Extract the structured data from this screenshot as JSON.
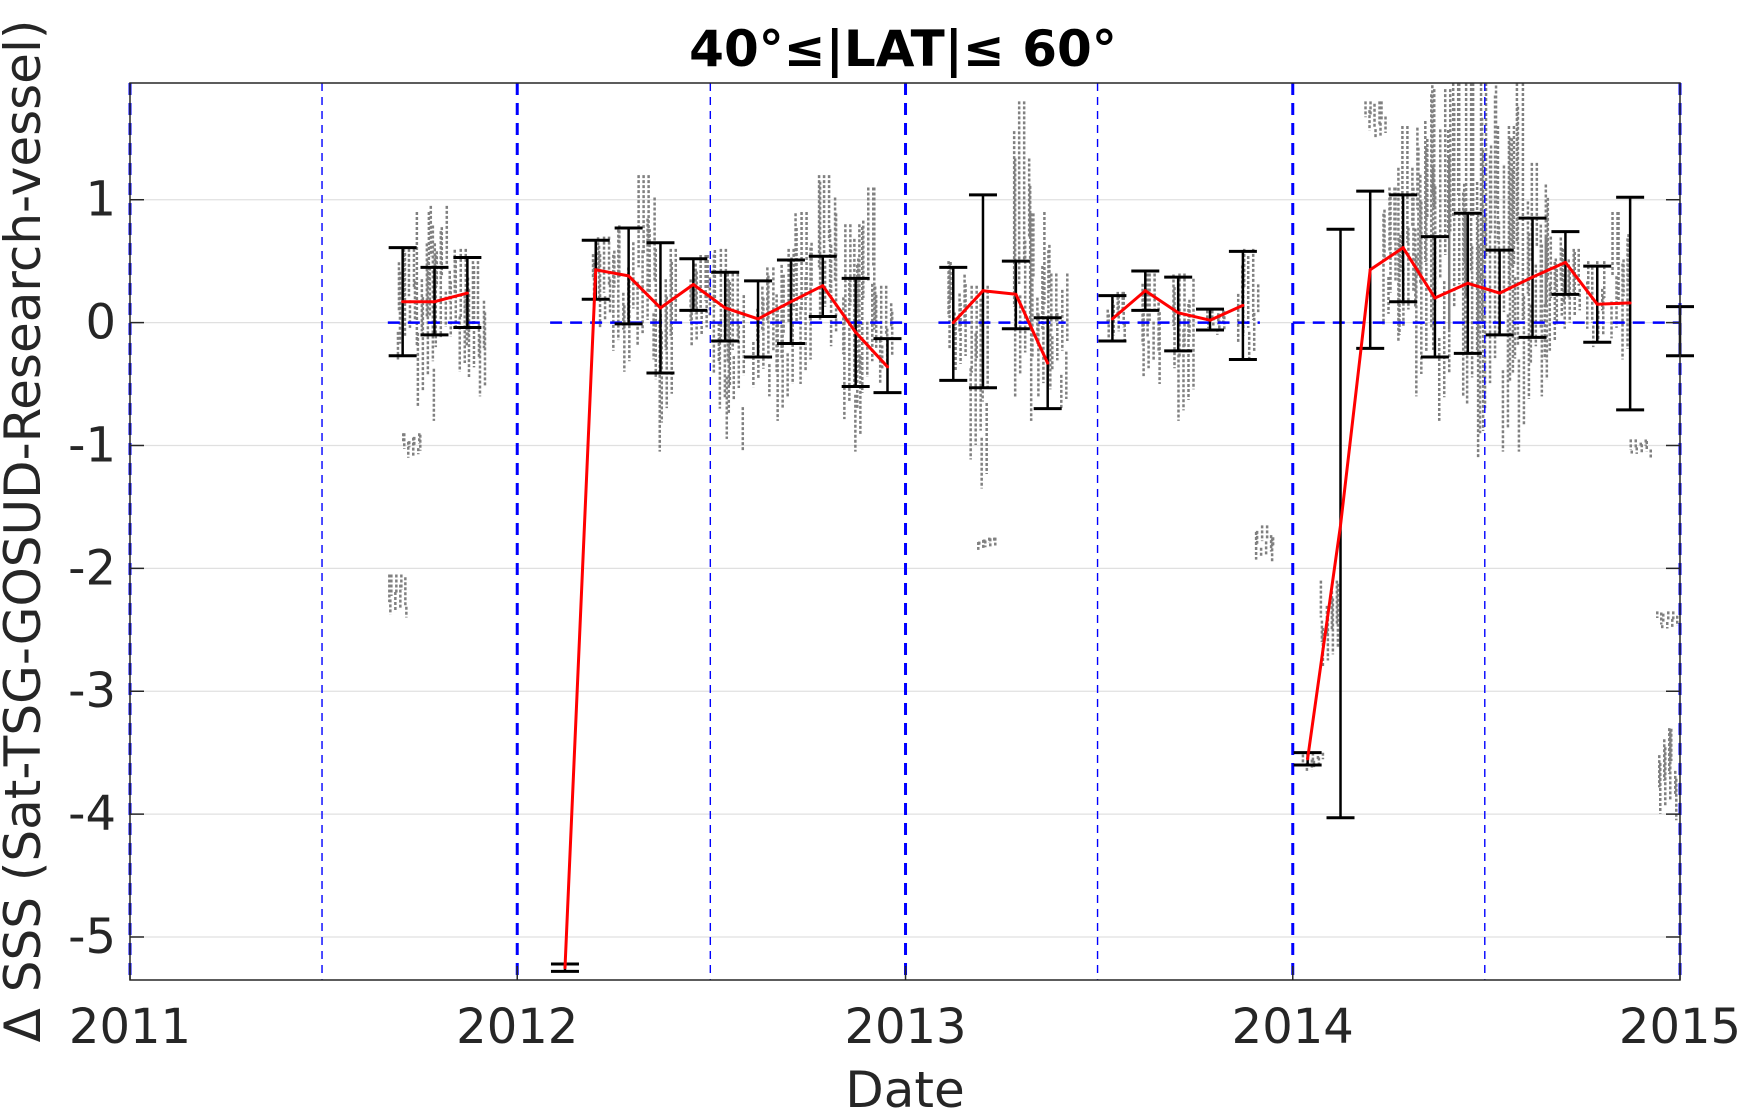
{
  "chart_data": {
    "type": "line",
    "title": "40°≤|LAT|≤ 60°",
    "xlabel": "Date",
    "ylabel": "Δ SSS (Sat-TSG-GOSUD-Research-vessel)",
    "xlim": [
      "2011-01-01",
      "2015-01-01"
    ],
    "ylim": [
      -5.35,
      1.95
    ],
    "x_ticks": [
      "2011",
      "2012",
      "2013",
      "2014",
      "2015"
    ],
    "x_tick_dates": [
      "2011-01-01",
      "2012-01-01",
      "2013-01-01",
      "2014-01-01",
      "2015-01-01"
    ],
    "y_ticks": [
      -5,
      -4,
      -3,
      -2,
      -1,
      0,
      1
    ],
    "y_tick_labels": [
      "-5",
      "-4",
      "-3",
      "-2",
      "-1",
      "0",
      "1"
    ],
    "grid": true,
    "colors": {
      "mean_line": "#ff0000",
      "error_bars": "#000000",
      "raw_points": "#808080",
      "year_lines": "#0000ff",
      "zero_line": "#0000ff",
      "grid": "#e0e0e0"
    },
    "year_boundaries": [
      "2011-01-01",
      "2012-01-01",
      "2013-01-01",
      "2014-01-01",
      "2015-01-01"
    ],
    "mid_year_lines": [
      "2011-07-01",
      "2012-07-01",
      "2013-07-01",
      "2014-07-01"
    ],
    "zero_segments": [
      [
        "2011-09-01",
        "2011-12-01"
      ],
      [
        "2012-02-01",
        "2013-01-01"
      ],
      [
        "2013-02-01",
        "2013-06-01"
      ],
      [
        "2013-07-01",
        "2013-12-01"
      ],
      [
        "2014-01-01",
        "2015-01-01"
      ]
    ],
    "series": [
      {
        "values": [
          {
            "x": "2011-09-15",
            "y": 0.17,
            "low": -0.27,
            "high": 0.61
          },
          {
            "x": "2011-10-15",
            "y": 0.17,
            "low": -0.1,
            "high": 0.45
          },
          {
            "x": "2011-11-15",
            "y": 0.24,
            "low": -0.04,
            "high": 0.53
          }
        ]
      },
      {
        "values": [
          {
            "x": "2012-02-15",
            "y": -5.25,
            "low": -5.28,
            "high": -5.22
          },
          {
            "x": "2012-03-15",
            "y": 0.43,
            "low": 0.19,
            "high": 0.67
          },
          {
            "x": "2012-04-15",
            "y": 0.38,
            "low": -0.01,
            "high": 0.77
          },
          {
            "x": "2012-05-15",
            "y": 0.12,
            "low": -0.41,
            "high": 0.65
          },
          {
            "x": "2012-06-15",
            "y": 0.31,
            "low": 0.1,
            "high": 0.52
          },
          {
            "x": "2012-07-15",
            "y": 0.12,
            "low": -0.15,
            "high": 0.41
          },
          {
            "x": "2012-08-15",
            "y": 0.03,
            "low": -0.28,
            "high": 0.34
          },
          {
            "x": "2012-09-15",
            "y": 0.17,
            "low": -0.17,
            "high": 0.51
          },
          {
            "x": "2012-10-15",
            "y": 0.3,
            "low": 0.05,
            "high": 0.54
          },
          {
            "x": "2012-11-15",
            "y": -0.08,
            "low": -0.52,
            "high": 0.36
          },
          {
            "x": "2012-12-15",
            "y": -0.36,
            "low": -0.57,
            "high": -0.13
          }
        ]
      },
      {
        "values": [
          {
            "x": "2013-02-15",
            "y": 0.0,
            "low": -0.47,
            "high": 0.45
          },
          {
            "x": "2013-03-15",
            "y": 0.26,
            "low": -0.53,
            "high": 1.04
          },
          {
            "x": "2013-04-15",
            "y": 0.23,
            "low": -0.05,
            "high": 0.5
          },
          {
            "x": "2013-05-15",
            "y": -0.33,
            "low": -0.7,
            "high": 0.04
          }
        ]
      },
      {
        "values": [
          {
            "x": "2013-07-15",
            "y": 0.03,
            "low": -0.15,
            "high": 0.22
          },
          {
            "x": "2013-08-15",
            "y": 0.26,
            "low": 0.1,
            "high": 0.42
          },
          {
            "x": "2013-09-15",
            "y": 0.08,
            "low": -0.23,
            "high": 0.37
          },
          {
            "x": "2013-10-15",
            "y": 0.02,
            "low": -0.06,
            "high": 0.11
          },
          {
            "x": "2013-11-15",
            "y": 0.14,
            "low": -0.3,
            "high": 0.58
          }
        ]
      },
      {
        "values": [
          {
            "x": "2014-01-15",
            "y": -3.55,
            "low": -3.6,
            "high": -3.5
          },
          {
            "x": "2014-02-15",
            "y": -1.65,
            "low": -4.03,
            "high": 0.76
          },
          {
            "x": "2014-03-15",
            "y": 0.43,
            "low": -0.21,
            "high": 1.07
          },
          {
            "x": "2014-04-15",
            "y": 0.61,
            "low": 0.17,
            "high": 1.04
          },
          {
            "x": "2014-05-15",
            "y": 0.2,
            "low": -0.28,
            "high": 0.7
          },
          {
            "x": "2014-06-15",
            "y": 0.32,
            "low": -0.25,
            "high": 0.89
          },
          {
            "x": "2014-07-15",
            "y": 0.24,
            "low": -0.1,
            "high": 0.59
          },
          {
            "x": "2014-08-15",
            "y": 0.37,
            "low": -0.12,
            "high": 0.85
          },
          {
            "x": "2014-09-15",
            "y": 0.49,
            "low": 0.23,
            "high": 0.74
          },
          {
            "x": "2014-10-15",
            "y": 0.15,
            "low": -0.16,
            "high": 0.46
          },
          {
            "x": "2014-11-15",
            "y": 0.16,
            "low": -0.71,
            "high": 1.02
          }
        ]
      }
    ],
    "extra_error_bars": [
      {
        "x": "2015-01-01",
        "low": -0.27,
        "high": 0.13
      }
    ],
    "raw_clusters": [
      {
        "x": "2011-09-20",
        "low": -0.3,
        "high": 0.6
      },
      {
        "x": "2011-10-05",
        "low": -0.8,
        "high": 0.9
      },
      {
        "x": "2011-10-20",
        "low": -0.2,
        "high": 0.95
      },
      {
        "x": "2011-11-05",
        "low": -0.4,
        "high": 0.6
      },
      {
        "x": "2011-11-25",
        "low": -0.6,
        "high": 0.5
      },
      {
        "x": "2011-09-10",
        "low": -2.4,
        "high": -2.05
      },
      {
        "x": "2011-09-25",
        "low": -1.1,
        "high": -0.9
      },
      {
        "x": "2012-03-20",
        "low": -0.1,
        "high": 0.7
      },
      {
        "x": "2012-04-10",
        "low": -0.4,
        "high": 0.8
      },
      {
        "x": "2012-05-01",
        "low": -0.3,
        "high": 1.2
      },
      {
        "x": "2012-05-20",
        "low": -1.05,
        "high": 0.6
      },
      {
        "x": "2012-06-20",
        "low": -0.2,
        "high": 0.55
      },
      {
        "x": "2012-07-10",
        "low": -0.7,
        "high": 0.6
      },
      {
        "x": "2012-07-25",
        "low": -1.05,
        "high": 0.4
      },
      {
        "x": "2012-08-20",
        "low": -0.6,
        "high": 0.45
      },
      {
        "x": "2012-09-10",
        "low": -0.8,
        "high": 0.6
      },
      {
        "x": "2012-09-25",
        "low": -0.5,
        "high": 0.9
      },
      {
        "x": "2012-10-20",
        "low": -0.3,
        "high": 1.2
      },
      {
        "x": "2012-11-10",
        "low": -1.05,
        "high": 0.8
      },
      {
        "x": "2012-11-25",
        "low": -0.7,
        "high": 1.1
      },
      {
        "x": "2012-12-10",
        "low": -0.5,
        "high": 0.3
      },
      {
        "x": "2013-02-20",
        "low": -0.4,
        "high": 0.5
      },
      {
        "x": "2013-03-10",
        "low": -1.35,
        "high": 0.3
      },
      {
        "x": "2013-03-20",
        "low": -1.85,
        "high": -1.75
      },
      {
        "x": "2013-04-20",
        "low": -0.8,
        "high": 1.8
      },
      {
        "x": "2013-05-10",
        "low": -0.6,
        "high": 0.9
      },
      {
        "x": "2013-05-25",
        "low": -0.7,
        "high": 0.4
      },
      {
        "x": "2013-07-20",
        "low": -0.2,
        "high": 0.25
      },
      {
        "x": "2013-08-20",
        "low": -0.5,
        "high": 0.4
      },
      {
        "x": "2013-09-20",
        "low": -0.8,
        "high": 0.4
      },
      {
        "x": "2013-10-20",
        "low": -0.1,
        "high": 0.1
      },
      {
        "x": "2013-11-20",
        "low": -0.3,
        "high": 0.6
      },
      {
        "x": "2013-12-05",
        "low": -1.95,
        "high": -1.65
      },
      {
        "x": "2014-01-20",
        "low": -3.65,
        "high": -3.5
      },
      {
        "x": "2014-02-05",
        "low": -2.8,
        "high": -2.1
      },
      {
        "x": "2014-03-20",
        "low": 1.5,
        "high": 1.8
      },
      {
        "x": "2014-04-05",
        "low": -0.1,
        "high": 1.1
      },
      {
        "x": "2014-04-20",
        "low": -0.3,
        "high": 1.6
      },
      {
        "x": "2014-05-05",
        "low": -0.6,
        "high": 1.95
      },
      {
        "x": "2014-05-20",
        "low": -0.8,
        "high": 1.9
      },
      {
        "x": "2014-06-05",
        "low": -0.6,
        "high": 1.95
      },
      {
        "x": "2014-06-20",
        "low": -1.1,
        "high": 1.95
      },
      {
        "x": "2014-07-05",
        "low": -0.9,
        "high": 1.95
      },
      {
        "x": "2014-07-20",
        "low": -1.05,
        "high": 1.6
      },
      {
        "x": "2014-08-05",
        "low": -1.05,
        "high": 1.95
      },
      {
        "x": "2014-08-20",
        "low": -0.6,
        "high": 1.3
      },
      {
        "x": "2014-09-05",
        "low": -0.3,
        "high": 0.7
      },
      {
        "x": "2014-09-20",
        "low": -0.1,
        "high": 0.6
      },
      {
        "x": "2014-10-15",
        "low": -0.2,
        "high": 0.5
      },
      {
        "x": "2014-11-05",
        "low": -0.3,
        "high": 0.9
      },
      {
        "x": "2014-11-25",
        "low": -1.1,
        "high": -0.95
      },
      {
        "x": "2014-12-20",
        "low": -4.05,
        "high": -3.3
      },
      {
        "x": "2014-12-20",
        "low": -2.5,
        "high": -2.35
      }
    ]
  }
}
